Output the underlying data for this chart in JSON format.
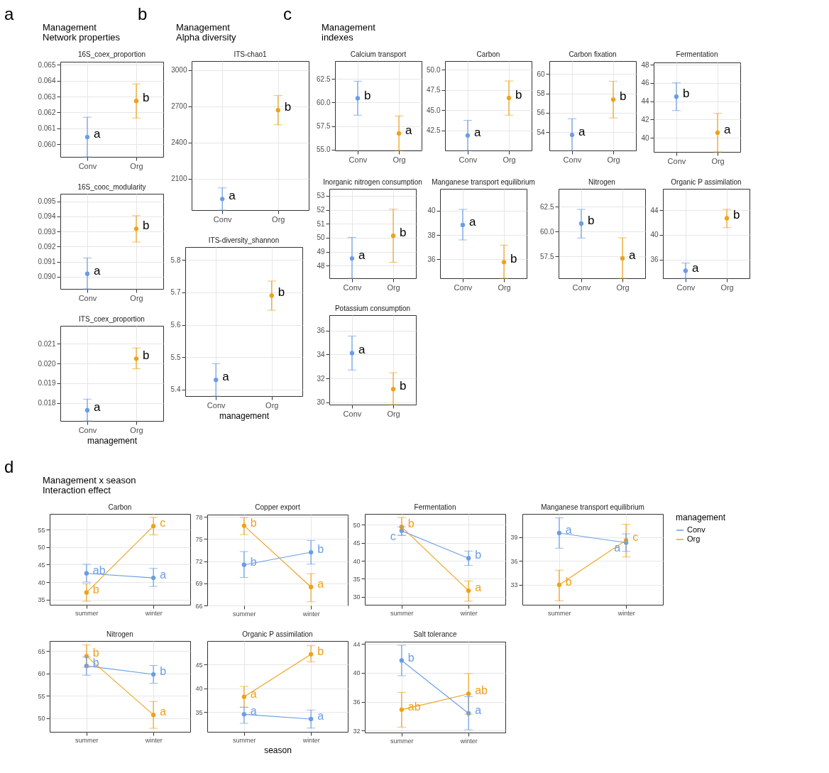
{
  "chart_data": [
    {
      "type": "scatter",
      "title": "16S_coex_proportion",
      "categories": [
        "Conv",
        "Org"
      ],
      "values": [
        0.06045,
        0.06273
      ],
      "colors": [
        "#6a9de6",
        "#eea21b"
      ],
      "errors": [
        [
          0.0592,
          0.0617
        ],
        [
          0.06165,
          0.0638
        ]
      ],
      "value_labels": [
        "a",
        "b"
      ],
      "ylim": [
        0.0592,
        0.0652
      ],
      "yticks": [
        {
          "value": 0.06,
          "label": "0.060"
        },
        0.061,
        0.062,
        0.063,
        0.064,
        0.065
      ],
      "grid": true,
      "marker": "circle",
      "annotations": [
        "a",
        "Management",
        "Network properties"
      ]
    },
    {
      "type": "scatter",
      "title": "16S_cooc_modularity",
      "categories": [
        "Conv",
        "Org"
      ],
      "values": [
        0.0902,
        0.09318
      ],
      "colors": [
        "#6a9de6",
        "#eea21b"
      ],
      "errors": [
        [
          0.0892,
          0.09125
        ],
        [
          0.0923,
          0.09405
        ]
      ],
      "value_labels": [
        "a",
        "b"
      ],
      "ylim": [
        0.0892,
        0.0955
      ],
      "yticks": [
        {
          "value": 0.09,
          "label": "0.090"
        },
        0.091,
        0.092,
        0.093,
        0.094,
        0.095
      ],
      "grid": true,
      "marker": "circle"
    },
    {
      "type": "scatter",
      "title": "ITS_coex_proportion",
      "xlabel": "management",
      "categories": [
        "Conv",
        "Org"
      ],
      "values": [
        0.01764,
        0.02024
      ],
      "colors": [
        "#6a9de6",
        "#eea21b"
      ],
      "errors": [
        [
          0.0171,
          0.0182
        ],
        [
          0.01973,
          0.02078
        ]
      ],
      "value_labels": [
        "a",
        "b"
      ],
      "ylim": [
        0.0171,
        0.0219
      ],
      "yticks": [
        0.018,
        0.019,
        {
          "value": 0.02,
          "label": "0.020"
        },
        0.021
      ],
      "grid": true,
      "marker": "circle"
    },
    {
      "type": "scatter",
      "title": "ITS-chao1",
      "categories": [
        "Conv",
        "Org"
      ],
      "values": [
        1932,
        2668
      ],
      "colors": [
        "#6a9de6",
        "#eea21b"
      ],
      "errors": [
        [
          1840,
          2024
        ],
        [
          2547,
          2789
        ]
      ],
      "value_labels": [
        "a",
        "b"
      ],
      "ylim": [
        1840,
        3075
      ],
      "yticks": [
        2100,
        2400,
        2700,
        3000
      ],
      "grid": true,
      "marker": "circle",
      "annotations": [
        "b",
        "Management",
        "Alpha diversity"
      ]
    },
    {
      "type": "scatter",
      "title": "ITS-diversity_shannon",
      "xlabel": "management",
      "categories": [
        "Conv",
        "Org"
      ],
      "values": [
        5.43,
        5.69
      ],
      "colors": [
        "#6a9de6",
        "#eea21b"
      ],
      "errors": [
        [
          5.38,
          5.48
        ],
        [
          5.645,
          5.735
        ]
      ],
      "value_labels": [
        "a",
        "b"
      ],
      "ylim": [
        5.38,
        5.84
      ],
      "yticks": [
        5.4,
        5.5,
        5.6,
        5.7,
        5.8
      ],
      "grid": true,
      "marker": "circle"
    },
    {
      "type": "scatter",
      "title": "Calcium transport",
      "categories": [
        "Conv",
        "Org"
      ],
      "values": [
        60.44,
        56.71
      ],
      "colors": [
        "#6a9de6",
        "#eea21b"
      ],
      "errors": [
        [
          58.65,
          62.26
        ],
        [
          54.9,
          58.56
        ]
      ],
      "value_labels": [
        "b",
        "a"
      ],
      "ylim": [
        54.9,
        64.4
      ],
      "yticks": [
        {
          "value": 55,
          "label": "55.0"
        },
        57.5,
        {
          "value": 60,
          "label": "60.0"
        },
        62.5
      ],
      "grid": true,
      "marker": "circle",
      "annotations": [
        "c",
        "Management",
        "indexes"
      ]
    },
    {
      "type": "scatter",
      "title": "Carbon",
      "categories": [
        "Conv",
        "Org"
      ],
      "values": [
        41.9,
        46.5
      ],
      "colors": [
        "#6a9de6",
        "#eea21b"
      ],
      "errors": [
        [
          40.05,
          43.76
        ],
        [
          44.4,
          48.6
        ]
      ],
      "value_labels": [
        "a",
        "b"
      ],
      "ylim": [
        40.05,
        51.05
      ],
      "yticks": [
        42.5,
        {
          "value": 45,
          "label": "45.0"
        },
        47.5,
        {
          "value": 50,
          "label": "50.0"
        }
      ],
      "grid": true,
      "marker": "circle"
    },
    {
      "type": "scatter",
      "title": "Carbon fixation",
      "categories": [
        "Conv",
        "Org"
      ],
      "values": [
        53.71,
        57.36
      ],
      "colors": [
        "#6a9de6",
        "#eea21b"
      ],
      "errors": [
        [
          52.1,
          55.38
        ],
        [
          55.47,
          59.26
        ]
      ],
      "value_labels": [
        "a",
        "b"
      ],
      "ylim": [
        52.1,
        61.35
      ],
      "yticks": [
        54,
        56,
        58,
        60
      ],
      "grid": true,
      "marker": "circle"
    },
    {
      "type": "scatter",
      "title": "Fermentation",
      "categories": [
        "Conv",
        "Org"
      ],
      "values": [
        44.5,
        40.55
      ],
      "colors": [
        "#6a9de6",
        "#eea21b"
      ],
      "errors": [
        [
          42.98,
          46.02
        ],
        [
          38.45,
          42.67
        ]
      ],
      "value_labels": [
        "b",
        "a"
      ],
      "ylim": [
        38.45,
        48.25
      ],
      "yticks": [
        40,
        42,
        44,
        46,
        48
      ],
      "grid": true,
      "marker": "circle"
    },
    {
      "type": "scatter",
      "title": "Inorganic nitrogen consumption",
      "categories": [
        "Conv",
        "Org"
      ],
      "values": [
        48.52,
        50.14
      ],
      "colors": [
        "#6a9de6",
        "#eea21b"
      ],
      "errors": [
        [
          47.1,
          50.02
        ],
        [
          48.24,
          52.04
        ]
      ],
      "value_labels": [
        "a",
        "b"
      ],
      "ylim": [
        47.1,
        53.5
      ],
      "yticks": [
        48,
        49,
        50,
        51,
        52,
        53
      ],
      "grid": true,
      "marker": "circle"
    },
    {
      "type": "scatter",
      "title": "Manganese transport equilibrium",
      "categories": [
        "Conv",
        "Org"
      ],
      "values": [
        38.83,
        35.77
      ],
      "colors": [
        "#6a9de6",
        "#eea21b"
      ],
      "errors": [
        [
          37.6,
          40.11
        ],
        [
          34.45,
          37.17
        ]
      ],
      "value_labels": [
        "a",
        "b"
      ],
      "ylim": [
        34.45,
        41.8
      ],
      "yticks": [
        36,
        38,
        40
      ],
      "grid": true,
      "marker": "circle"
    },
    {
      "type": "scatter",
      "title": "Nitrogen",
      "categories": [
        "Conv",
        "Org"
      ],
      "values": [
        60.8,
        57.3
      ],
      "colors": [
        "#6a9de6",
        "#eea21b"
      ],
      "errors": [
        [
          59.35,
          62.23
        ],
        [
          55.3,
          59.37
        ]
      ],
      "value_labels": [
        "b",
        "a"
      ],
      "ylim": [
        55.3,
        64.3
      ],
      "yticks": [
        57.5,
        {
          "value": 60,
          "label": "60.0"
        },
        62.5
      ],
      "grid": true,
      "marker": "circle"
    },
    {
      "type": "scatter",
      "title": "Organic P assimilation",
      "categories": [
        "Conv",
        "Org"
      ],
      "values": [
        34.2,
        42.7
      ],
      "colors": [
        "#6a9de6",
        "#eea21b"
      ],
      "errors": [
        [
          33,
          35.46
        ],
        [
          41.17,
          44.13
        ]
      ],
      "value_labels": [
        "a",
        "b"
      ],
      "ylim": [
        33,
        47.45
      ],
      "yticks": [
        36,
        40,
        44
      ],
      "grid": true,
      "marker": "circle"
    },
    {
      "type": "scatter",
      "title": "Potassium consumption",
      "categories": [
        "Conv",
        "Org"
      ],
      "values": [
        34.12,
        31.1
      ],
      "colors": [
        "#6a9de6",
        "#eea21b"
      ],
      "errors": [
        [
          32.7,
          35.55
        ],
        [
          29.8,
          32.47
        ]
      ],
      "value_labels": [
        "a",
        "b"
      ],
      "ylim": [
        29.8,
        37.3
      ],
      "yticks": [
        30,
        32,
        34,
        36
      ],
      "grid": true,
      "marker": "circle"
    },
    {
      "type": "line",
      "title": "Carbon",
      "categories": [
        "summer",
        "winter"
      ],
      "series": [
        {
          "color": "#6a9de6",
          "values": [
            42.5,
            41.2
          ],
          "errors": [
            [
              40,
              45.1
            ],
            [
              38.75,
              43.9
            ]
          ],
          "value_labels": [
            "ab",
            "a"
          ]
        },
        {
          "color": "#eea21b",
          "values": [
            37,
            56
          ],
          "errors": [
            [
              34.5,
              39.5
            ],
            [
              53.5,
              58.5
            ]
          ],
          "value_labels": [
            "b",
            "c"
          ]
        }
      ],
      "ylim": [
        33.5,
        59.5
      ],
      "yticks": [
        35,
        40,
        45,
        50,
        55
      ],
      "grid": true,
      "marker": "circle",
      "annotations": [
        "d",
        "Management x season",
        "Interaction effect"
      ]
    },
    {
      "type": "line",
      "title": "Copper export",
      "categories": [
        "summer",
        "winter"
      ],
      "series": [
        {
          "color": "#6a9de6",
          "values": [
            71.5,
            73.2
          ],
          "errors": [
            [
              69.8,
              73.3
            ],
            [
              71.6,
              74.8
            ]
          ],
          "value_labels": [
            "b",
            "b"
          ]
        },
        {
          "color": "#eea21b",
          "values": [
            76.8,
            68.5
          ],
          "errors": [
            [
              75.6,
              77.9
            ],
            [
              66.5,
              70.3
            ]
          ],
          "value_labels": [
            "b",
            "a"
          ]
        }
      ],
      "ylim": [
        66,
        78.3
      ],
      "yticks": [
        66,
        69,
        72,
        75,
        78
      ],
      "grid": true,
      "marker": "circle"
    },
    {
      "type": "line",
      "title": "Fermentation",
      "categories": [
        "summer",
        "winter"
      ],
      "series": [
        {
          "color": "#6a9de6",
          "values": [
            48.3,
            40.7
          ],
          "errors": [
            [
              47.1,
              49.4
            ],
            [
              38.7,
              42.7
            ]
          ],
          "value_labels": [
            "c",
            "b"
          ]
        },
        {
          "color": "#eea21b",
          "values": [
            49.4,
            31.7
          ],
          "errors": [
            [
              47,
              52
            ],
            [
              28.8,
              34.4
            ]
          ],
          "value_labels": [
            "b",
            "a"
          ]
        }
      ],
      "ylim": [
        27.8,
        53
      ],
      "yticks": [
        30,
        35,
        40,
        45,
        50
      ],
      "grid": true,
      "marker": "circle"
    },
    {
      "type": "line",
      "title": "Manganese transport equilibrium",
      "categories": [
        "summer",
        "winter"
      ],
      "legend_title": "management",
      "legend": "right",
      "series": [
        {
          "name": "Conv",
          "color": "#6a9de6",
          "values": [
            39.5,
            38.3
          ],
          "errors": [
            [
              37.6,
              41.4
            ],
            [
              37.2,
              39.4
            ]
          ],
          "value_labels": [
            "a",
            "a"
          ]
        },
        {
          "name": "Org",
          "color": "#eea21b",
          "values": [
            33,
            38.6
          ],
          "errors": [
            [
              31,
              34.85
            ],
            [
              36.5,
              40.6
            ]
          ],
          "value_labels": [
            "b",
            "c"
          ]
        }
      ],
      "ylim": [
        30.5,
        41.9
      ],
      "yticks": [
        33,
        36,
        39
      ],
      "grid": true,
      "marker": "circle"
    },
    {
      "type": "line",
      "title": "Nitrogen",
      "categories": [
        "summer",
        "winter"
      ],
      "series": [
        {
          "color": "#6a9de6",
          "values": [
            61.7,
            59.8
          ],
          "errors": [
            [
              59.6,
              63.7
            ],
            [
              57.8,
              61.8
            ]
          ],
          "value_labels": [
            "b",
            "b"
          ]
        },
        {
          "color": "#eea21b",
          "values": [
            63.9,
            50.7
          ],
          "errors": [
            [
              61.4,
              66.4
            ],
            [
              47.7,
              53.7
            ]
          ],
          "value_labels": [
            "b",
            "a"
          ]
        }
      ],
      "ylim": [
        46.9,
        67.3
      ],
      "yticks": [
        50,
        55,
        60,
        65
      ],
      "grid": true,
      "marker": "circle"
    },
    {
      "type": "line",
      "title": "Organic P assimilation",
      "xlabel": "season",
      "categories": [
        "summer",
        "winter"
      ],
      "series": [
        {
          "color": "#6a9de6",
          "values": [
            34.5,
            33.5
          ],
          "errors": [
            [
              32.6,
              36
            ],
            [
              31.6,
              35.4
            ]
          ],
          "value_labels": [
            "a",
            "a"
          ]
        },
        {
          "color": "#eea21b",
          "values": [
            38.2,
            47.2
          ],
          "errors": [
            [
              36,
              40.4
            ],
            [
              45.6,
              49
            ]
          ],
          "value_labels": [
            "a",
            "b"
          ]
        }
      ],
      "ylim": [
        30.8,
        50
      ],
      "yticks": [
        35,
        40,
        45
      ],
      "grid": true,
      "marker": "circle"
    },
    {
      "type": "line",
      "title": "Salt tolerance",
      "categories": [
        "summer",
        "winter"
      ],
      "series": [
        {
          "color": "#6a9de6",
          "values": [
            41.7,
            34.4
          ],
          "errors": [
            [
              39.6,
              43.8
            ],
            [
              32.15,
              36.7
            ]
          ],
          "value_labels": [
            "b",
            "a"
          ]
        },
        {
          "color": "#eea21b",
          "values": [
            34.9,
            37.1
          ],
          "errors": [
            [
              32.5,
              37.3
            ],
            [
              34.3,
              39.9
            ]
          ],
          "value_labels": [
            "ab",
            "ab"
          ]
        }
      ],
      "ylim": [
        31.75,
        44.3
      ],
      "yticks": [
        32,
        36,
        40,
        44
      ],
      "grid": true,
      "marker": "circle"
    }
  ]
}
